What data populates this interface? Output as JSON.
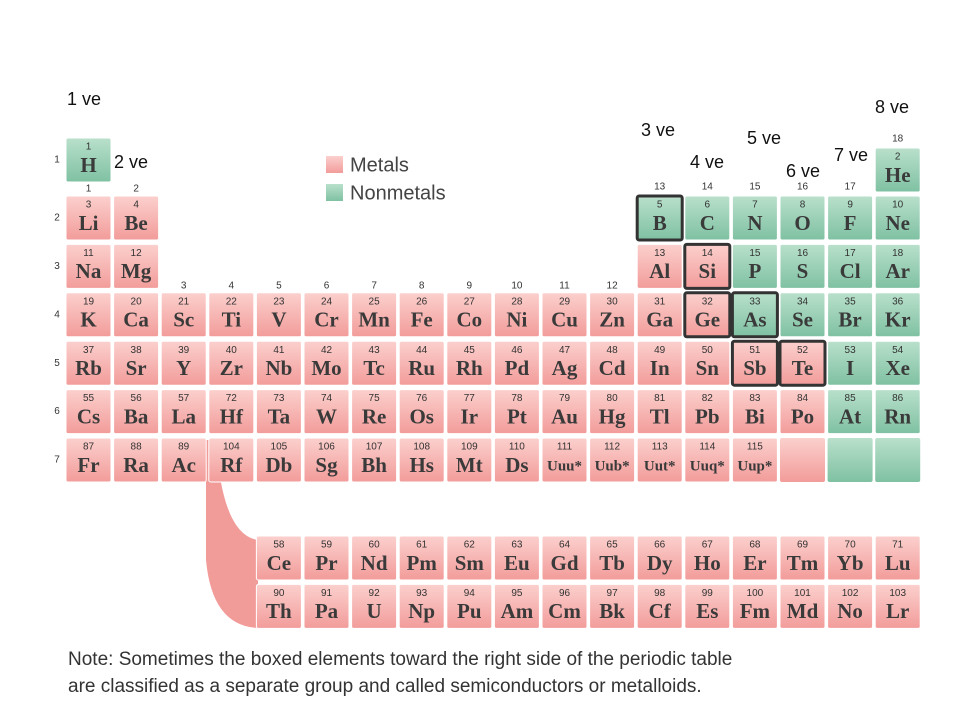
{
  "annotations": [
    "1 ve",
    "2 ve",
    "3 ve",
    "4 ve",
    "5 ve",
    "6 ve",
    "7 ve",
    "8 ve"
  ],
  "legend": {
    "metals": "Metals",
    "nonmetals": "Nonmetals"
  },
  "groups": [
    "1",
    "2",
    "3",
    "4",
    "5",
    "6",
    "7",
    "8",
    "9",
    "10",
    "11",
    "12",
    "13",
    "14",
    "15",
    "16",
    "17",
    "18"
  ],
  "periods": [
    {
      "label": "1",
      "elements": [
        {
          "number": "1",
          "symbol": "H",
          "group": 1,
          "nonmetal": true
        },
        {
          "number": "2",
          "symbol": "He",
          "group": 18,
          "nonmetal": true
        }
      ]
    },
    {
      "label": "2",
      "elements": [
        {
          "number": "3",
          "symbol": "Li",
          "group": 1
        },
        {
          "number": "4",
          "symbol": "Be",
          "group": 2
        },
        {
          "number": "5",
          "symbol": "B",
          "group": 13,
          "nonmetal": true,
          "boxed": true
        },
        {
          "number": "6",
          "symbol": "C",
          "group": 14,
          "nonmetal": true
        },
        {
          "number": "7",
          "symbol": "N",
          "group": 15,
          "nonmetal": true
        },
        {
          "number": "8",
          "symbol": "O",
          "group": 16,
          "nonmetal": true
        },
        {
          "number": "9",
          "symbol": "F",
          "group": 17,
          "nonmetal": true
        },
        {
          "number": "10",
          "symbol": "Ne",
          "group": 18,
          "nonmetal": true
        }
      ]
    },
    {
      "label": "3",
      "elements": [
        {
          "number": "11",
          "symbol": "Na",
          "group": 1
        },
        {
          "number": "12",
          "symbol": "Mg",
          "group": 2
        },
        {
          "number": "13",
          "symbol": "Al",
          "group": 13
        },
        {
          "number": "14",
          "symbol": "Si",
          "group": 14,
          "boxed": true
        },
        {
          "number": "15",
          "symbol": "P",
          "group": 15,
          "nonmetal": true
        },
        {
          "number": "16",
          "symbol": "S",
          "group": 16,
          "nonmetal": true
        },
        {
          "number": "17",
          "symbol": "Cl",
          "group": 17,
          "nonmetal": true
        },
        {
          "number": "18",
          "symbol": "Ar",
          "group": 18,
          "nonmetal": true
        }
      ]
    },
    {
      "label": "4",
      "elements": [
        {
          "number": "19",
          "symbol": "K",
          "group": 1
        },
        {
          "number": "20",
          "symbol": "Ca",
          "group": 2
        },
        {
          "number": "21",
          "symbol": "Sc",
          "group": 3
        },
        {
          "number": "22",
          "symbol": "Ti",
          "group": 4
        },
        {
          "number": "23",
          "symbol": "V",
          "group": 5
        },
        {
          "number": "24",
          "symbol": "Cr",
          "group": 6
        },
        {
          "number": "25",
          "symbol": "Mn",
          "group": 7
        },
        {
          "number": "26",
          "symbol": "Fe",
          "group": 8
        },
        {
          "number": "27",
          "symbol": "Co",
          "group": 9
        },
        {
          "number": "28",
          "symbol": "Ni",
          "group": 10
        },
        {
          "number": "29",
          "symbol": "Cu",
          "group": 11
        },
        {
          "number": "30",
          "symbol": "Zn",
          "group": 12
        },
        {
          "number": "31",
          "symbol": "Ga",
          "group": 13
        },
        {
          "number": "32",
          "symbol": "Ge",
          "group": 14,
          "boxed": true
        },
        {
          "number": "33",
          "symbol": "As",
          "group": 15,
          "nonmetal": true,
          "boxed": true
        },
        {
          "number": "34",
          "symbol": "Se",
          "group": 16,
          "nonmetal": true
        },
        {
          "number": "35",
          "symbol": "Br",
          "group": 17,
          "nonmetal": true
        },
        {
          "number": "36",
          "symbol": "Kr",
          "group": 18,
          "nonmetal": true
        }
      ]
    },
    {
      "label": "5",
      "elements": [
        {
          "number": "37",
          "symbol": "Rb",
          "group": 1
        },
        {
          "number": "38",
          "symbol": "Sr",
          "group": 2
        },
        {
          "number": "39",
          "symbol": "Y",
          "group": 3
        },
        {
          "number": "40",
          "symbol": "Zr",
          "group": 4
        },
        {
          "number": "41",
          "symbol": "Nb",
          "group": 5
        },
        {
          "number": "42",
          "symbol": "Mo",
          "group": 6
        },
        {
          "number": "43",
          "symbol": "Tc",
          "group": 7
        },
        {
          "number": "44",
          "symbol": "Ru",
          "group": 8
        },
        {
          "number": "45",
          "symbol": "Rh",
          "group": 9
        },
        {
          "number": "46",
          "symbol": "Pd",
          "group": 10
        },
        {
          "number": "47",
          "symbol": "Ag",
          "group": 11
        },
        {
          "number": "48",
          "symbol": "Cd",
          "group": 12
        },
        {
          "number": "49",
          "symbol": "In",
          "group": 13
        },
        {
          "number": "50",
          "symbol": "Sn",
          "group": 14
        },
        {
          "number": "51",
          "symbol": "Sb",
          "group": 15,
          "boxed": true
        },
        {
          "number": "52",
          "symbol": "Te",
          "group": 16,
          "boxed": true
        },
        {
          "number": "53",
          "symbol": "I",
          "group": 17,
          "nonmetal": true
        },
        {
          "number": "54",
          "symbol": "Xe",
          "group": 18,
          "nonmetal": true
        }
      ]
    },
    {
      "label": "6",
      "elements": [
        {
          "number": "55",
          "symbol": "Cs",
          "group": 1
        },
        {
          "number": "56",
          "symbol": "Ba",
          "group": 2
        },
        {
          "number": "57",
          "symbol": "La",
          "group": 3
        },
        {
          "number": "72",
          "symbol": "Hf",
          "group": 4
        },
        {
          "number": "73",
          "symbol": "Ta",
          "group": 5
        },
        {
          "number": "74",
          "symbol": "W",
          "group": 6
        },
        {
          "number": "75",
          "symbol": "Re",
          "group": 7
        },
        {
          "number": "76",
          "symbol": "Os",
          "group": 8
        },
        {
          "number": "77",
          "symbol": "Ir",
          "group": 9
        },
        {
          "number": "78",
          "symbol": "Pt",
          "group": 10
        },
        {
          "number": "79",
          "symbol": "Au",
          "group": 11
        },
        {
          "number": "80",
          "symbol": "Hg",
          "group": 12
        },
        {
          "number": "81",
          "symbol": "Tl",
          "group": 13
        },
        {
          "number": "82",
          "symbol": "Pb",
          "group": 14
        },
        {
          "number": "83",
          "symbol": "Bi",
          "group": 15
        },
        {
          "number": "84",
          "symbol": "Po",
          "group": 16
        },
        {
          "number": "85",
          "symbol": "At",
          "group": 17,
          "nonmetal": true
        },
        {
          "number": "86",
          "symbol": "Rn",
          "group": 18,
          "nonmetal": true
        }
      ]
    },
    {
      "label": "7",
      "elements": [
        {
          "number": "87",
          "symbol": "Fr",
          "group": 1
        },
        {
          "number": "88",
          "symbol": "Ra",
          "group": 2
        },
        {
          "number": "89",
          "symbol": "Ac",
          "group": 3
        },
        {
          "number": "104",
          "symbol": "Rf",
          "group": 4
        },
        {
          "number": "105",
          "symbol": "Db",
          "group": 5
        },
        {
          "number": "106",
          "symbol": "Sg",
          "group": 6
        },
        {
          "number": "107",
          "symbol": "Bh",
          "group": 7
        },
        {
          "number": "108",
          "symbol": "Hs",
          "group": 8
        },
        {
          "number": "109",
          "symbol": "Mt",
          "group": 9
        },
        {
          "number": "110",
          "symbol": "Ds",
          "group": 10
        },
        {
          "number": "111",
          "symbol": "Uuu*",
          "group": 11
        },
        {
          "number": "112",
          "symbol": "Uub*",
          "group": 12
        },
        {
          "number": "113",
          "symbol": "Uut*",
          "group": 13
        },
        {
          "number": "114",
          "symbol": "Uuq*",
          "group": 14
        },
        {
          "number": "115",
          "symbol": "Uup*",
          "group": 15
        }
      ]
    }
  ],
  "f_block": [
    {
      "elements": [
        {
          "number": "58",
          "symbol": "Ce"
        },
        {
          "number": "59",
          "symbol": "Pr"
        },
        {
          "number": "60",
          "symbol": "Nd"
        },
        {
          "number": "61",
          "symbol": "Pm"
        },
        {
          "number": "62",
          "symbol": "Sm"
        },
        {
          "number": "63",
          "symbol": "Eu"
        },
        {
          "number": "64",
          "symbol": "Gd"
        },
        {
          "number": "65",
          "symbol": "Tb"
        },
        {
          "number": "66",
          "symbol": "Dy"
        },
        {
          "number": "67",
          "symbol": "Ho"
        },
        {
          "number": "68",
          "symbol": "Er"
        },
        {
          "number": "69",
          "symbol": "Tm"
        },
        {
          "number": "70",
          "symbol": "Yb"
        },
        {
          "number": "71",
          "symbol": "Lu"
        }
      ]
    },
    {
      "elements": [
        {
          "number": "90",
          "symbol": "Th"
        },
        {
          "number": "91",
          "symbol": "Pa"
        },
        {
          "number": "92",
          "symbol": "U"
        },
        {
          "number": "93",
          "symbol": "Np"
        },
        {
          "number": "94",
          "symbol": "Pu"
        },
        {
          "number": "95",
          "symbol": "Am"
        },
        {
          "number": "96",
          "symbol": "Cm"
        },
        {
          "number": "97",
          "symbol": "Bk"
        },
        {
          "number": "98",
          "symbol": "Cf"
        },
        {
          "number": "99",
          "symbol": "Es"
        },
        {
          "number": "100",
          "symbol": "Fm"
        },
        {
          "number": "101",
          "symbol": "Md"
        },
        {
          "number": "102",
          "symbol": "No"
        },
        {
          "number": "103",
          "symbol": "Lr"
        }
      ]
    }
  ],
  "note": [
    "Note: Sometimes the boxed elements toward the right side of the periodic table",
    "are classified as a separate group and called semiconductors or metalloids."
  ]
}
